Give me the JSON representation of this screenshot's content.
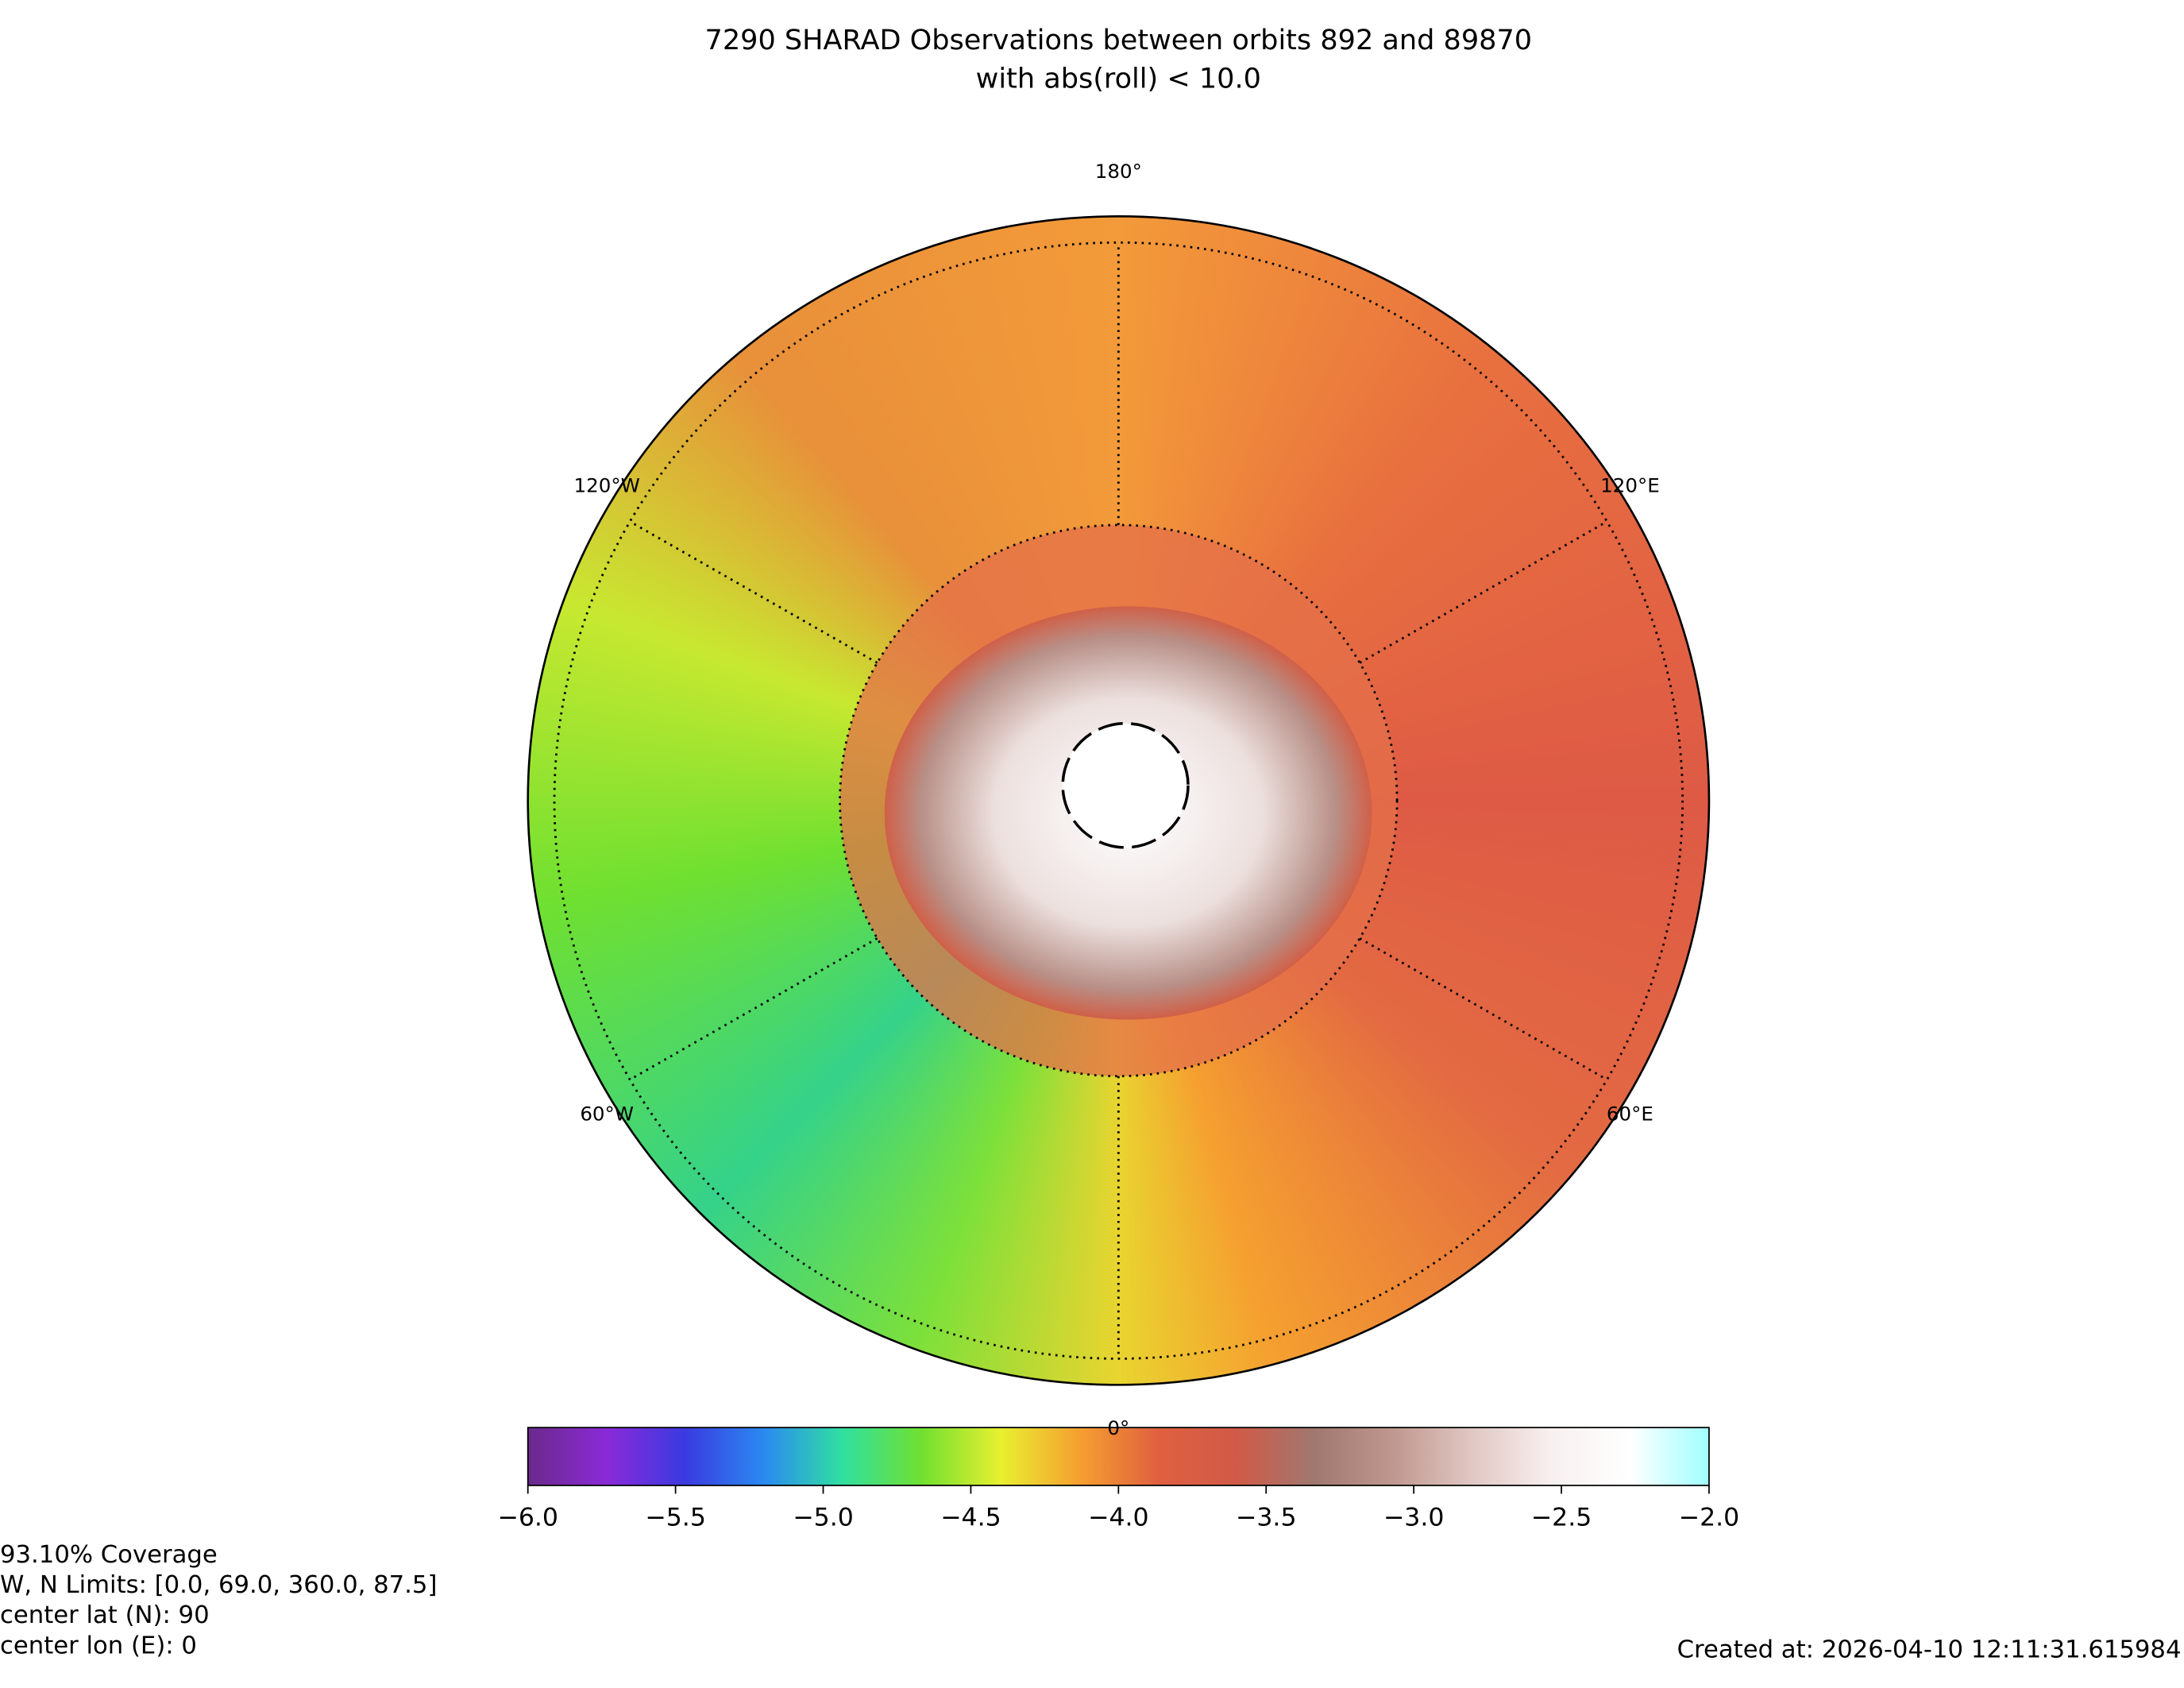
{
  "title": [
    "7290 SHARAD Observations between orbits 892 and 89870",
    "with abs(roll) < 10.0"
  ],
  "map": {
    "type": "polar-map",
    "meridian_labels": [
      {
        "lon": 180,
        "label": "180°"
      },
      {
        "lon": 120,
        "label": "120°E"
      },
      {
        "lon": 60,
        "label": "60°E"
      },
      {
        "lon": 0,
        "label": "0°"
      },
      {
        "lon": -60,
        "label": "60°W"
      },
      {
        "lon": -120,
        "label": "120°W"
      }
    ],
    "colorbar": {
      "clim": [
        -6,
        -2
      ],
      "cticks": [
        {
          "value": -6,
          "label": "−6.0"
        },
        {
          "value": -5.5,
          "label": "−5.5"
        },
        {
          "value": -5,
          "label": "−5.0"
        },
        {
          "value": -4.5,
          "label": "−4.5"
        },
        {
          "value": -4,
          "label": "−4.0"
        },
        {
          "value": -3.5,
          "label": "−3.5"
        },
        {
          "value": -3,
          "label": "−3.0"
        },
        {
          "value": -2.5,
          "label": "−2.5"
        },
        {
          "value": -2,
          "label": "−2.0"
        }
      ],
      "colormap": [
        "#6a2a8a",
        "#8a2ad8",
        "#3a3ae0",
        "#2a8af0",
        "#30e0a0",
        "#70e030",
        "#e8f030",
        "#f5a030",
        "#e06040",
        "#d05a48",
        "#a07870",
        "#c09890",
        "#e0c8c4",
        "#f8f0f0",
        "#ffffff",
        "#a0ffff"
      ]
    }
  },
  "footer": {
    "left": [
      "93.10% Coverage",
      "W, N Limits:  [0.0, 69.0, 360.0, 87.5]",
      "center lat (N): 90",
      "center lon (E): 0"
    ],
    "right": "Created at: 2026-04-10 12:11:31.615984"
  }
}
